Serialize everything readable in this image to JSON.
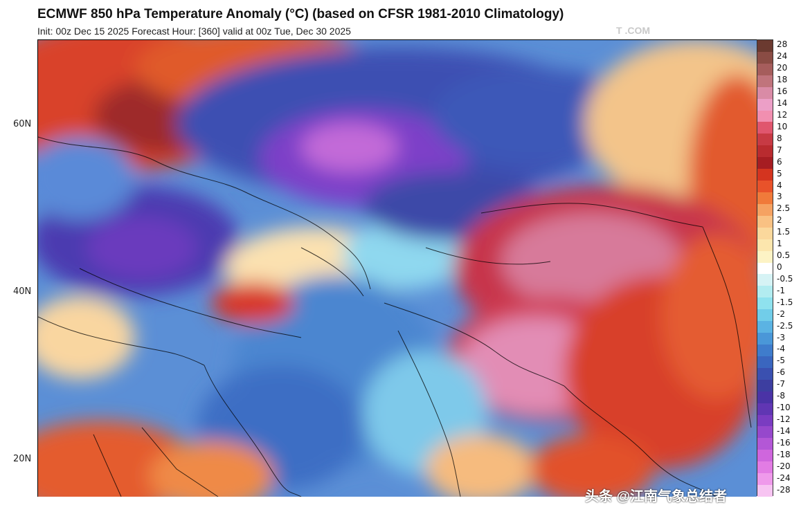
{
  "header": {
    "title": "ECMWF 850 hPa Temperature Anomaly (°C) (based on CFSR 1981-2010 Climatology)",
    "subtitle": "Init: 00z Dec 15 2025   Forecast Hour: [360]   valid at 00z Tue, Dec 30 2025",
    "watermark": "T          .COM"
  },
  "map": {
    "lat_labels": [
      "60N",
      "40N",
      "20N"
    ],
    "credit": "头条 @江南气象总结者"
  },
  "colorbar": {
    "labels": [
      "28",
      "24",
      "20",
      "18",
      "16",
      "14",
      "12",
      "10",
      "8",
      "7",
      "6",
      "5",
      "4",
      "3",
      "2.5",
      "2",
      "1.5",
      "1",
      "0.5",
      "0",
      "-0.5",
      "-1",
      "-1.5",
      "-2",
      "-2.5",
      "-3",
      "-4",
      "-5",
      "-6",
      "-7",
      "-8",
      "-10",
      "-12",
      "-14",
      "-16",
      "-18",
      "-20",
      "-24",
      "-28"
    ],
    "colors": [
      "#6b3a30",
      "#8a4c44",
      "#a65d5c",
      "#c0747c",
      "#d98ba6",
      "#ec9fc7",
      "#f18fb0",
      "#e0566e",
      "#c73a44",
      "#b92b2f",
      "#a61d22",
      "#d4341f",
      "#e8522a",
      "#f07a3a",
      "#f5a262",
      "#f9c183",
      "#fbd89c",
      "#fce6ad",
      "#fdf3c5",
      "#ffffff",
      "#d6f3f5",
      "#b2ecf0",
      "#8fe2ee",
      "#71cde9",
      "#5bb3e3",
      "#4a97d8",
      "#3f7ccc",
      "#3a66bf",
      "#3a50b0",
      "#3d3ea0",
      "#4a33a6",
      "#6036b3",
      "#7a3cc1",
      "#9648cc",
      "#b357d6",
      "#cf66dd",
      "#e27ce4",
      "#ef9aeb",
      "#f7c4f2"
    ]
  }
}
